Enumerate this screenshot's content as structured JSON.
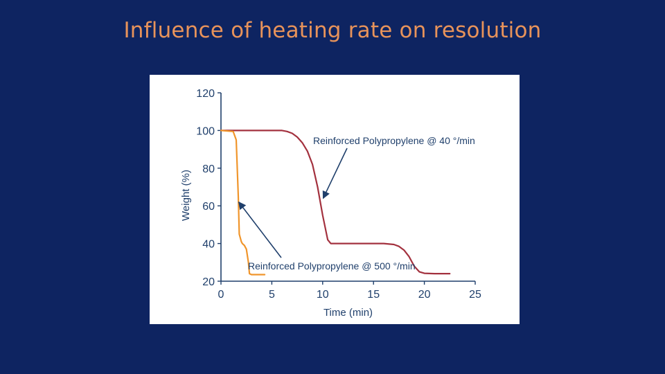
{
  "slide": {
    "title": "Influence of heating rate on resolution",
    "title_color": "#e8935a",
    "background": "#0e2461"
  },
  "chart_data": {
    "type": "line",
    "xlabel": "Time (min)",
    "ylabel": "Weight (%)",
    "xlim": [
      0,
      25
    ],
    "ylim": [
      20,
      120
    ],
    "xticks": [
      0,
      5,
      10,
      15,
      20,
      25
    ],
    "yticks": [
      20,
      40,
      60,
      80,
      100,
      120
    ],
    "grid": false,
    "series": [
      {
        "name": "Reinforced Polypropylene @ 40 °/min",
        "color": "#a3313e",
        "x": [
          0,
          6,
          6.5,
          7,
          7.5,
          8,
          8.5,
          9,
          9.5,
          10,
          10.5,
          10.8,
          11,
          12,
          14,
          16,
          17,
          17.5,
          18,
          18.5,
          19,
          19.5,
          20,
          21,
          22.5
        ],
        "y": [
          100,
          100,
          99.5,
          98.5,
          96.5,
          93.5,
          89,
          82,
          70,
          55,
          42,
          40,
          40,
          40,
          40,
          40,
          39.5,
          38.5,
          36.5,
          33,
          28,
          25,
          24.2,
          24,
          24
        ]
      },
      {
        "name": "Reinforced Polypropylene @ 500 °/min",
        "color": "#f0952b",
        "x": [
          0,
          1.2,
          1.5,
          1.7,
          1.8,
          2.0,
          2.1,
          2.2,
          2.3,
          2.5,
          2.7,
          2.8,
          3.0,
          4.3
        ],
        "y": [
          100,
          99.5,
          95,
          65,
          45,
          41,
          40,
          39.5,
          39,
          37,
          30,
          24,
          23.5,
          23.5
        ]
      }
    ],
    "annotations": [
      {
        "text": "Reinforced Polypropylene @ 40 °/min",
        "points_to_series": 0
      },
      {
        "text": "Reinforced Polypropylene @ 500 °/min",
        "points_to_series": 1
      }
    ]
  }
}
